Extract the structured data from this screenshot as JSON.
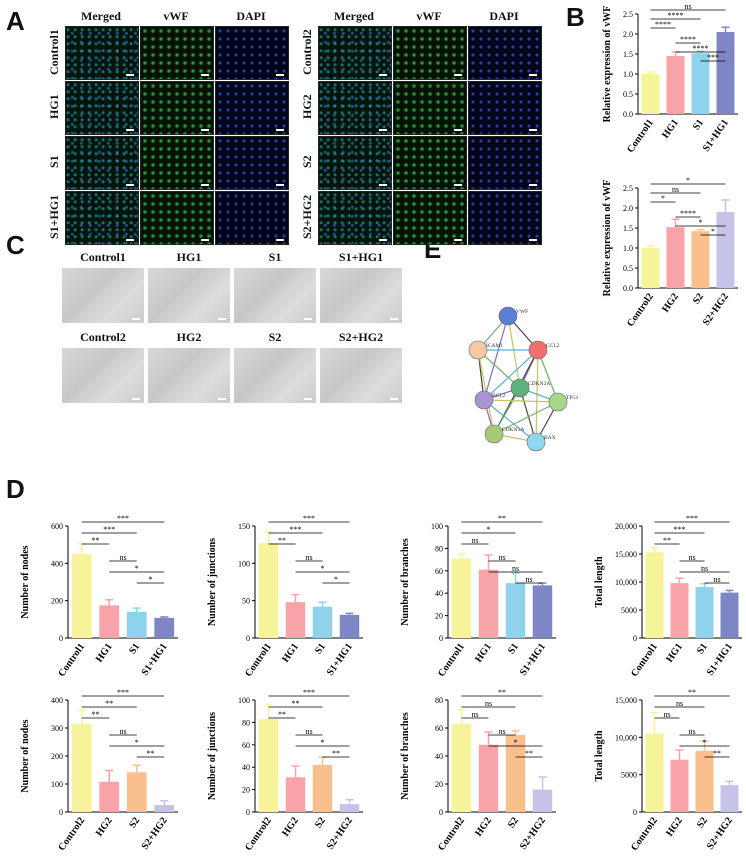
{
  "panels": {
    "A": "A",
    "B": "B",
    "C": "C",
    "D": "D",
    "E": "E"
  },
  "panelA": {
    "headers": [
      "Merged",
      "vWF",
      "DAPI"
    ],
    "left_rows": [
      "Control1",
      "HG1",
      "S1",
      "S1+HG1"
    ],
    "right_rows": [
      "Control2",
      "HG2",
      "S2",
      "S2+HG2"
    ]
  },
  "panelC": {
    "row1": [
      "Control1",
      "HG1",
      "S1",
      "S1+HG1"
    ],
    "row2": [
      "Control2",
      "HG2",
      "S2",
      "S2+HG2"
    ]
  },
  "panelE": {
    "nodes": [
      "VWF",
      "ICAM1",
      "CCL2",
      "CDKN2A",
      "BCL2",
      "TP53",
      "CDKN1A",
      "BAX"
    ],
    "colors": [
      "#5b7fd3",
      "#f4c9a4",
      "#f07070",
      "#5fb37a",
      "#a995d4",
      "#a7d68a",
      "#a8c97c",
      "#8fd7ec"
    ]
  },
  "chart_data": [
    {
      "id": "B1",
      "type": "bar",
      "categories": [
        "Control1",
        "HG1",
        "S1",
        "S1+HG1"
      ],
      "values": [
        1.0,
        1.45,
        1.52,
        2.05
      ],
      "errors": [
        0.05,
        0.1,
        0.05,
        0.12
      ],
      "ylabel": "Relative expression of vWF",
      "ylim": [
        0,
        2.5
      ],
      "yticks": [
        "0.0",
        "0.5",
        "1.0",
        "1.5",
        "2.0",
        "2.5"
      ],
      "colors": [
        "#f7f39a",
        "#f8a3a8",
        "#8fd2ec",
        "#7f86c6"
      ],
      "sig": [
        "****",
        "****",
        "ns",
        "****",
        "****",
        "***"
      ]
    },
    {
      "id": "B2",
      "type": "bar",
      "categories": [
        "Control2",
        "HG2",
        "S2",
        "S2+HG2"
      ],
      "values": [
        1.0,
        1.52,
        1.42,
        1.9
      ],
      "errors": [
        0.05,
        0.2,
        0.04,
        0.3
      ],
      "ylabel": "Relative expression of vWF",
      "ylim": [
        0,
        2.5
      ],
      "yticks": [
        "0.0",
        "0.5",
        "1.0",
        "1.5",
        "2.0",
        "2.5"
      ],
      "colors": [
        "#f7f39a",
        "#f8a3a8",
        "#f9c08e",
        "#c7c2e8"
      ],
      "sig": [
        "*",
        "ns",
        "*",
        "****",
        "*",
        "*"
      ]
    },
    {
      "id": "D1",
      "type": "bar",
      "categories": [
        "Control1",
        "HG1",
        "S1",
        "S1+HG1"
      ],
      "values": [
        450,
        175,
        140,
        108
      ],
      "errors": [
        55,
        30,
        20,
        5
      ],
      "ylabel": "Number of nodes",
      "ylim": [
        0,
        600
      ],
      "yticks": [
        "0",
        "200",
        "400",
        "600"
      ],
      "colors": [
        "#f7f39a",
        "#f8a3a8",
        "#8fd2ec",
        "#7f86c6"
      ],
      "sig": [
        "**",
        "***",
        "***",
        "ns",
        "*",
        "*"
      ]
    },
    {
      "id": "D2",
      "type": "bar",
      "categories": [
        "Control1",
        "HG1",
        "S1",
        "S1+HG1"
      ],
      "values": [
        127,
        48,
        42,
        31
      ],
      "errors": [
        15,
        10,
        6,
        2
      ],
      "ylabel": "Number of junctions",
      "ylim": [
        0,
        150
      ],
      "yticks": [
        "0",
        "50",
        "100",
        "150"
      ],
      "colors": [
        "#f7f39a",
        "#f8a3a8",
        "#8fd2ec",
        "#7f86c6"
      ],
      "sig": [
        "**",
        "***",
        "***",
        "ns",
        "*",
        "*"
      ]
    },
    {
      "id": "D3",
      "type": "bar",
      "categories": [
        "Control1",
        "HG1",
        "S1",
        "S1+HG1"
      ],
      "values": [
        71,
        61,
        49,
        47
      ],
      "errors": [
        4,
        13,
        9,
        2
      ],
      "ylabel": "Number of branches",
      "ylim": [
        0,
        100
      ],
      "yticks": [
        "0",
        "20",
        "40",
        "60",
        "80",
        "100"
      ],
      "colors": [
        "#f7f39a",
        "#f8a3a8",
        "#8fd2ec",
        "#7f86c6"
      ],
      "sig": [
        "ns",
        "*",
        "**",
        "ns",
        "ns",
        "ns"
      ]
    },
    {
      "id": "D4",
      "type": "bar",
      "categories": [
        "Control1",
        "HG1",
        "S1",
        "S1+HG1"
      ],
      "values": [
        15300,
        9800,
        9100,
        8100
      ],
      "errors": [
        900,
        900,
        600,
        400
      ],
      "ylabel": "Total length",
      "ylim": [
        0,
        20000
      ],
      "yticks": [
        "0",
        "5000",
        "10,000",
        "15,000",
        "20,000"
      ],
      "colors": [
        "#f7f39a",
        "#f8a3a8",
        "#8fd2ec",
        "#7f86c6"
      ],
      "sig": [
        "**",
        "***",
        "***",
        "ns",
        "ns",
        "ns"
      ]
    },
    {
      "id": "D5",
      "type": "bar",
      "categories": [
        "Control2",
        "HG2",
        "S2",
        "S2+HG2"
      ],
      "values": [
        315,
        108,
        142,
        25
      ],
      "errors": [
        50,
        40,
        25,
        15
      ],
      "ylabel": "Number of nodes",
      "ylim": [
        0,
        400
      ],
      "yticks": [
        "0",
        "100",
        "200",
        "300",
        "400"
      ],
      "colors": [
        "#f7f39a",
        "#f8a3a8",
        "#f9c08e",
        "#c7c2e8"
      ],
      "sig": [
        "**",
        "**",
        "***",
        "ns",
        "*",
        "**"
      ]
    },
    {
      "id": "D6",
      "type": "bar",
      "categories": [
        "Control2",
        "HG2",
        "S2",
        "S2+HG2"
      ],
      "values": [
        83,
        31,
        42,
        7
      ],
      "errors": [
        13,
        10,
        7,
        4
      ],
      "ylabel": "Number of junctions",
      "ylim": [
        0,
        100
      ],
      "yticks": [
        "0",
        "20",
        "40",
        "60",
        "80",
        "100"
      ],
      "colors": [
        "#f7f39a",
        "#f8a3a8",
        "#f9c08e",
        "#c7c2e8"
      ],
      "sig": [
        "**",
        "**",
        "***",
        "ns",
        "*",
        "**"
      ]
    },
    {
      "id": "D7",
      "type": "bar",
      "categories": [
        "Control2",
        "HG2",
        "S2",
        "S2+HG2"
      ],
      "values": [
        63,
        48,
        55,
        16
      ],
      "errors": [
        10,
        9,
        3,
        9
      ],
      "ylabel": "Number of branches",
      "ylim": [
        0,
        80
      ],
      "yticks": [
        "0",
        "20",
        "40",
        "60",
        "80"
      ],
      "colors": [
        "#f7f39a",
        "#f8a3a8",
        "#f9c08e",
        "#c7c2e8"
      ],
      "sig": [
        "ns",
        "ns",
        "**",
        "ns",
        "*",
        "**"
      ]
    },
    {
      "id": "D8",
      "type": "bar",
      "categories": [
        "Control2",
        "HG2",
        "S2",
        "S2+HG2"
      ],
      "values": [
        10500,
        7000,
        8200,
        3600
      ],
      "errors": [
        2800,
        1300,
        1300,
        500
      ],
      "ylabel": "Total length",
      "ylim": [
        0,
        15000
      ],
      "yticks": [
        "0",
        "5000",
        "10,000",
        "15,000"
      ],
      "colors": [
        "#f7f39a",
        "#f8a3a8",
        "#f9c08e",
        "#c7c2e8"
      ],
      "sig": [
        "ns",
        "ns",
        "**",
        "ns",
        "*",
        "**"
      ]
    }
  ]
}
